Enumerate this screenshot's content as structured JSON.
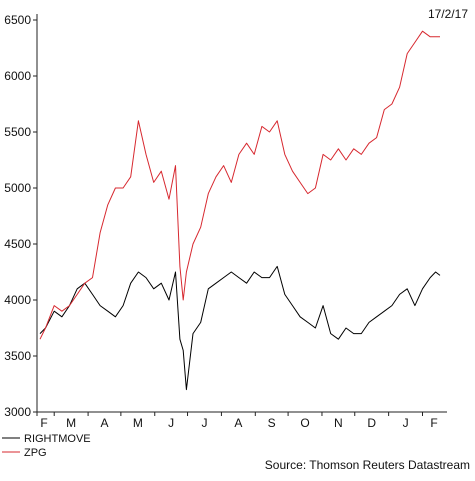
{
  "chart_data": {
    "type": "line",
    "date_label": "17/2/17",
    "source": "Source: Thomson Reuters Datastream",
    "ylim": [
      3000,
      6500
    ],
    "yticks": [
      3000,
      3500,
      4000,
      4500,
      5000,
      5500,
      6000,
      6500
    ],
    "months": [
      "F",
      "M",
      "A",
      "M",
      "J",
      "J",
      "A",
      "S",
      "O",
      "N",
      "D",
      "J",
      "F"
    ],
    "grid": false,
    "legend_position": "bottom-left",
    "x": [
      "2016-02-17",
      "2016-02-22",
      "2016-03-01",
      "2016-03-08",
      "2016-03-15",
      "2016-03-22",
      "2016-03-29",
      "2016-04-05",
      "2016-04-12",
      "2016-04-19",
      "2016-04-26",
      "2016-05-03",
      "2016-05-10",
      "2016-05-17",
      "2016-05-24",
      "2016-05-31",
      "2016-06-07",
      "2016-06-14",
      "2016-06-20",
      "2016-06-24",
      "2016-06-27",
      "2016-06-30",
      "2016-07-06",
      "2016-07-13",
      "2016-07-20",
      "2016-07-27",
      "2016-08-03",
      "2016-08-10",
      "2016-08-17",
      "2016-08-24",
      "2016-08-31",
      "2016-09-07",
      "2016-09-14",
      "2016-09-21",
      "2016-09-28",
      "2016-10-05",
      "2016-10-12",
      "2016-10-19",
      "2016-10-26",
      "2016-11-02",
      "2016-11-09",
      "2016-11-16",
      "2016-11-23",
      "2016-11-30",
      "2016-12-07",
      "2016-12-14",
      "2016-12-21",
      "2016-12-28",
      "2017-01-04",
      "2017-01-11",
      "2017-01-18",
      "2017-01-25",
      "2017-02-01",
      "2017-02-08",
      "2017-02-13",
      "2017-02-17"
    ],
    "series": [
      {
        "name": "RIGHTMOVE",
        "color": "#000000",
        "values": [
          3700,
          3750,
          3900,
          3850,
          3950,
          4100,
          4150,
          4050,
          3950,
          3900,
          3850,
          3950,
          4150,
          4250,
          4200,
          4100,
          4150,
          4000,
          4250,
          3650,
          3550,
          3200,
          3700,
          3800,
          4100,
          4150,
          4200,
          4250,
          4200,
          4150,
          4250,
          4200,
          4200,
          4300,
          4050,
          3950,
          3850,
          3800,
          3750,
          3950,
          3700,
          3650,
          3750,
          3700,
          3700,
          3800,
          3850,
          3900,
          3950,
          4050,
          4100,
          3950,
          4100,
          4200,
          4250,
          4220
        ]
      },
      {
        "name": "ZPG",
        "color": "#d7282f",
        "values": [
          3650,
          3750,
          3950,
          3900,
          3950,
          4050,
          4150,
          4200,
          4600,
          4850,
          5000,
          5000,
          5100,
          5600,
          5300,
          5050,
          5150,
          4900,
          5200,
          4300,
          4000,
          4250,
          4500,
          4650,
          4950,
          5100,
          5200,
          5050,
          5300,
          5400,
          5300,
          5550,
          5500,
          5600,
          5300,
          5150,
          5050,
          4950,
          5000,
          5300,
          5250,
          5350,
          5250,
          5350,
          5300,
          5400,
          5450,
          5700,
          5750,
          5900,
          6200,
          6300,
          6400,
          6350,
          6350,
          6350
        ]
      }
    ]
  }
}
